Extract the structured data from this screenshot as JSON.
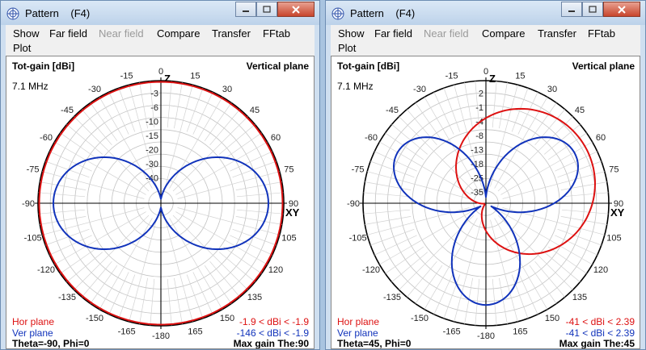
{
  "windows": [
    {
      "title": "Pattern    (F4)",
      "menu": {
        "show": "Show",
        "far_field": "Far field",
        "near_field": "Near field",
        "compare": "Compare",
        "transfer": "Transfer",
        "fftab": "FFtab",
        "plot": "Plot"
      },
      "plot": {
        "gain_label": "Tot-gain [dBi]",
        "plane_label": "Vertical plane",
        "frequency": "7.1 MHz",
        "z_label": "Z",
        "xy_label": "XY",
        "hor_plane_label": "Hor plane",
        "ver_plane_label": "Ver plane",
        "hor_range": "-1.9 < dBi < -1.9",
        "ver_range": "-146 < dBi < -1.9",
        "theta_phi": "Theta=-90, Phi=0",
        "max_gain": "Max gain The:90"
      },
      "chart_data": {
        "type": "polar",
        "angle_labels": [
          "0",
          "15",
          "30",
          "45",
          "60",
          "75",
          "90",
          "105",
          "120",
          "135",
          "150",
          "165",
          "-180",
          "-165",
          "-150",
          "-135",
          "-120",
          "-105",
          "-90",
          "-75",
          "-60",
          "-45",
          "-30",
          "-15"
        ],
        "radial_labels": [
          "-3",
          "-6",
          "-10",
          "-15",
          "-20",
          "-30",
          "-40"
        ],
        "grid_rings": 10,
        "series": [
          {
            "name": "Hor plane",
            "color": "#dd1111",
            "pattern": "omni",
            "max_dbi": -1.9
          },
          {
            "name": "Ver plane",
            "color": "#1133bb",
            "pattern": "figure-eight",
            "max_dbi": -1.9,
            "null_dbi": -146
          }
        ]
      }
    },
    {
      "title": "Pattern    (F4)",
      "menu": {
        "show": "Show",
        "far_field": "Far field",
        "near_field": "Near field",
        "compare": "Compare",
        "transfer": "Transfer",
        "fftab": "FFtab",
        "plot": "Plot"
      },
      "plot": {
        "gain_label": "Tot-gain [dBi]",
        "plane_label": "Vertical plane",
        "frequency": "7.1 MHz",
        "z_label": "Z",
        "xy_label": "XY",
        "hor_plane_label": "Hor plane",
        "ver_plane_label": "Ver plane",
        "hor_range": "-41 < dBi < 2.39",
        "ver_range": "-41 < dBi < 2.39",
        "theta_phi": "Theta=45, Phi=0",
        "max_gain": "Max gain The:45"
      },
      "chart_data": {
        "type": "polar",
        "angle_labels": [
          "0",
          "15",
          "30",
          "45",
          "60",
          "75",
          "90",
          "105",
          "120",
          "135",
          "150",
          "165",
          "-180",
          "-165",
          "-150",
          "-135",
          "-120",
          "-105",
          "-90",
          "-75",
          "-60",
          "-45",
          "-30",
          "-15"
        ],
        "radial_labels": [
          "2",
          "-1",
          "-4",
          "-8",
          "-13",
          "-18",
          "-25",
          "-35"
        ],
        "grid_rings": 10,
        "series": [
          {
            "name": "Hor plane",
            "color": "#dd1111",
            "pattern": "cardioid",
            "max_dbi": 2.39,
            "min_dbi": -41
          },
          {
            "name": "Ver plane",
            "color": "#1133bb",
            "pattern": "three-lobe",
            "max_dbi": 2.39,
            "min_dbi": -41
          }
        ]
      }
    }
  ]
}
